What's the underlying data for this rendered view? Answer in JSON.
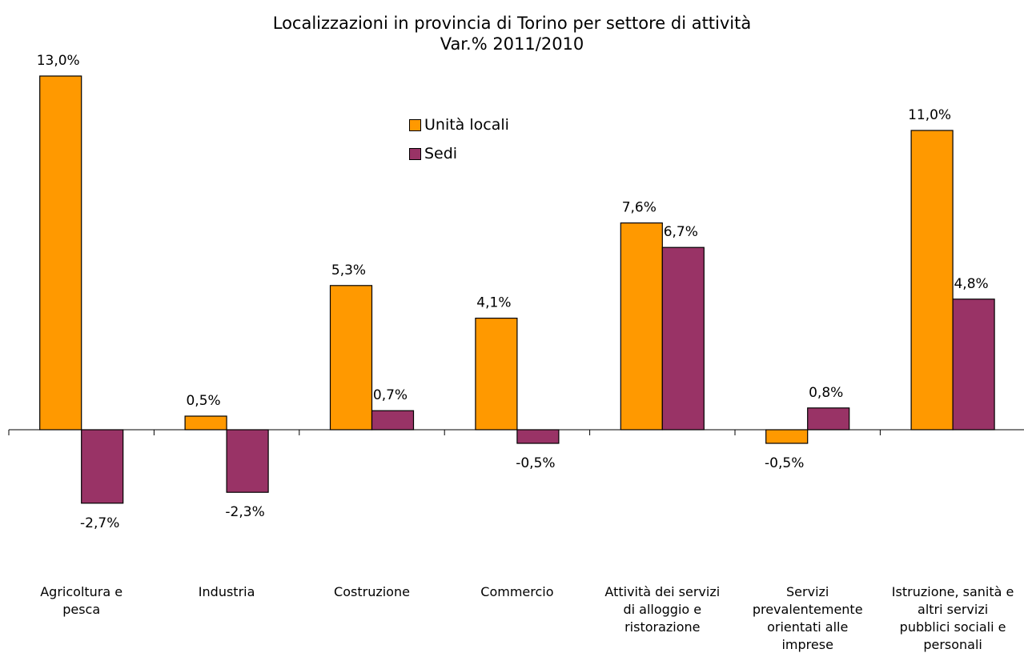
{
  "chart_data": {
    "type": "bar",
    "title": "Localizzazioni in provincia di Torino per settore di attività",
    "subtitle": "Var.% 2011/2010",
    "categories": [
      "Agricoltura e pesca",
      "Industria",
      "Costruzione",
      "Commercio",
      "Attività dei servizi di alloggio e ristorazione",
      "Servizi prevalentemente orientati alle imprese",
      "Istruzione, sanità e altri servizi pubblici sociali e personali"
    ],
    "series": [
      {
        "name": "Unità locali",
        "color": "#FF9900",
        "values": [
          13.0,
          0.5,
          5.3,
          4.1,
          7.6,
          -0.5,
          11.0
        ],
        "labels": [
          "13,0%",
          "0,5%",
          "5,3%",
          "4,1%",
          "7,6%",
          "-0,5%",
          "11,0%"
        ]
      },
      {
        "name": "Sedi",
        "color": "#993366",
        "values": [
          -2.7,
          -2.3,
          0.7,
          -0.5,
          6.7,
          0.8,
          4.8
        ],
        "labels": [
          "-2,7%",
          "-2,3%",
          "0,7%",
          "-0,5%",
          "6,7%",
          "0,8%",
          "4,8%"
        ]
      }
    ],
    "legend_position": "top-center",
    "grid": false
  }
}
